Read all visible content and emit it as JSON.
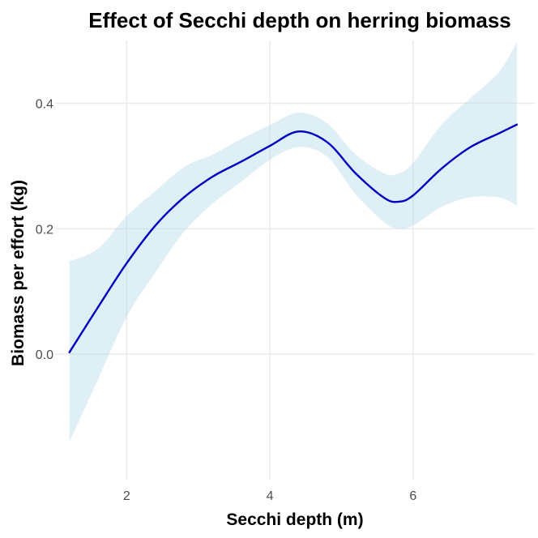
{
  "chart_data": {
    "type": "line",
    "title": "Effect of Secchi depth on herring biomass",
    "xlabel": "Secchi depth (m)",
    "ylabel": "Biomass per effort (kg)",
    "xlim": [
      1.0,
      7.7
    ],
    "ylim": [
      -0.2,
      0.5
    ],
    "x_ticks": [
      2,
      4,
      6
    ],
    "x_tick_labels": [
      "2",
      "4",
      "6"
    ],
    "y_ticks": [
      0.0,
      0.2,
      0.4
    ],
    "y_tick_labels": [
      "0.0",
      "0.2",
      "0.4"
    ],
    "grid": true,
    "legend": "none",
    "colors": {
      "line": "#0000c0",
      "ribbon": "#add8e6"
    },
    "series": [
      {
        "x": [
          1.2,
          1.6,
          2.0,
          2.4,
          2.8,
          3.2,
          3.6,
          4.0,
          4.4,
          4.8,
          5.2,
          5.6,
          5.8,
          6.0,
          6.4,
          6.8,
          7.2,
          7.45
        ],
        "y": [
          0.003,
          0.075,
          0.145,
          0.205,
          0.25,
          0.283,
          0.307,
          0.332,
          0.355,
          0.338,
          0.288,
          0.249,
          0.243,
          0.253,
          0.296,
          0.33,
          0.352,
          0.366
        ],
        "lower": [
          -0.14,
          -0.04,
          0.06,
          0.13,
          0.195,
          0.24,
          0.275,
          0.31,
          0.33,
          0.315,
          0.255,
          0.21,
          0.2,
          0.205,
          0.235,
          0.25,
          0.25,
          0.237
        ],
        "upper": [
          0.148,
          0.168,
          0.22,
          0.26,
          0.298,
          0.318,
          0.343,
          0.365,
          0.385,
          0.368,
          0.318,
          0.288,
          0.288,
          0.305,
          0.366,
          0.408,
          0.45,
          0.497
        ]
      }
    ]
  }
}
